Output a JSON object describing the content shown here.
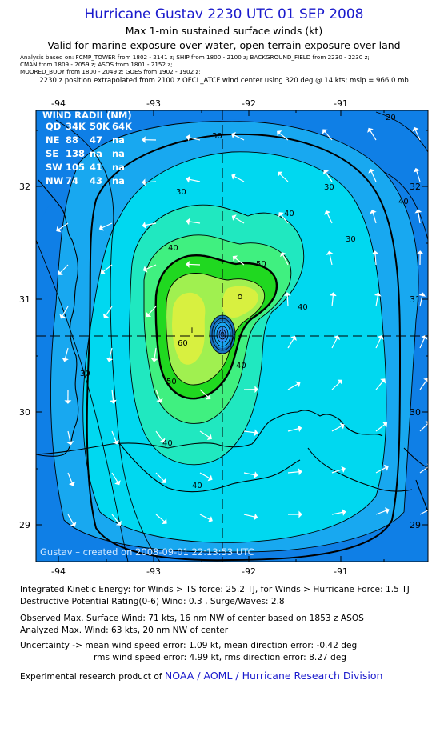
{
  "header": {
    "title": "Hurricane Gustav 2230 UTC 01 SEP 2008",
    "subtitle": "Max 1-min sustained surface winds (kt)",
    "valid_line": "Valid for marine exposure over water, open terrain exposure over land",
    "analysis_lines": [
      "Analysis based on:  FCMP_TOWER from 1802 - 2141 z;  SHIP from 1800 - 2100 z;  BACKGROUND_FIELD from 2230 - 2230 z;",
      "CMAN from 1809 - 2059 z;  ASOS from 1801 - 2152 z;",
      "MOORED_BUOY from 1800 - 2049 z;  GOES from 1902 - 1902 z;"
    ],
    "position_line": "2230 z position extrapolated from 2100 z OFCL_ATCF wind center using 320 deg @ 14 kts; mslp = 966.0 mb"
  },
  "map": {
    "lon_ticks": [
      "-94",
      "-93",
      "-92",
      "-91"
    ],
    "lat_ticks": [
      "32",
      "31",
      "30",
      "29"
    ],
    "contour_labels": [
      "30",
      "30",
      "30",
      "30",
      "30",
      "40",
      "40",
      "40",
      "40",
      "40",
      "50",
      "50",
      "60",
      "40",
      "40",
      "20"
    ],
    "footer_text": "Gustav – created on 2008-09-01 22:13:53 UTC",
    "center_marker": "+",
    "max_marker": "o",
    "wind_radii": {
      "title": "WIND RADII (NM)",
      "header": [
        "QD",
        "34K",
        "50K",
        "64K"
      ],
      "rows": [
        [
          "NE",
          "88",
          "47",
          "na"
        ],
        [
          "SE",
          "138",
          "na",
          "na"
        ],
        [
          "SW",
          "105",
          "41",
          "na"
        ],
        [
          "NW",
          "74",
          "43",
          "na"
        ]
      ]
    },
    "colors": {
      "land_20": "#0f7fe6",
      "band_30": "#18a8f0",
      "band_40": "#00d8f0",
      "band_50": "#20e8c0",
      "band_60": "#40f080",
      "band_65": "#20d820",
      "band_70": "#a0f050",
      "band_75": "#d8f040"
    }
  },
  "stats": {
    "ike_line": "Integrated Kinetic Energy:  for Winds > TS force: 25.2 TJ,  for Winds > Hurricane Force: 1.5 TJ",
    "dpr_line": "Destructive Potential Rating(0-6)   Wind: 0.3 , Surge/Waves: 2.8",
    "observed_line": "Observed Max. Surface Wind: 71 kts, 16 nm NW of center based on 1853 z ASOS",
    "analyzed_line": "Analyzed Max. Wind: 63 kts, 20 nm NW of center",
    "uncert_line1": "Uncertainty -> mean wind speed error: 1.09 kt,   mean direction error:  -0.42 deg",
    "uncert_line2": "rms wind speed error: 4.99 kt,   rms direction error: 8.27 deg",
    "credit_prefix": "Experimental research product of",
    "credit_link": "NOAA / AOML / Hurricane Research Division"
  }
}
